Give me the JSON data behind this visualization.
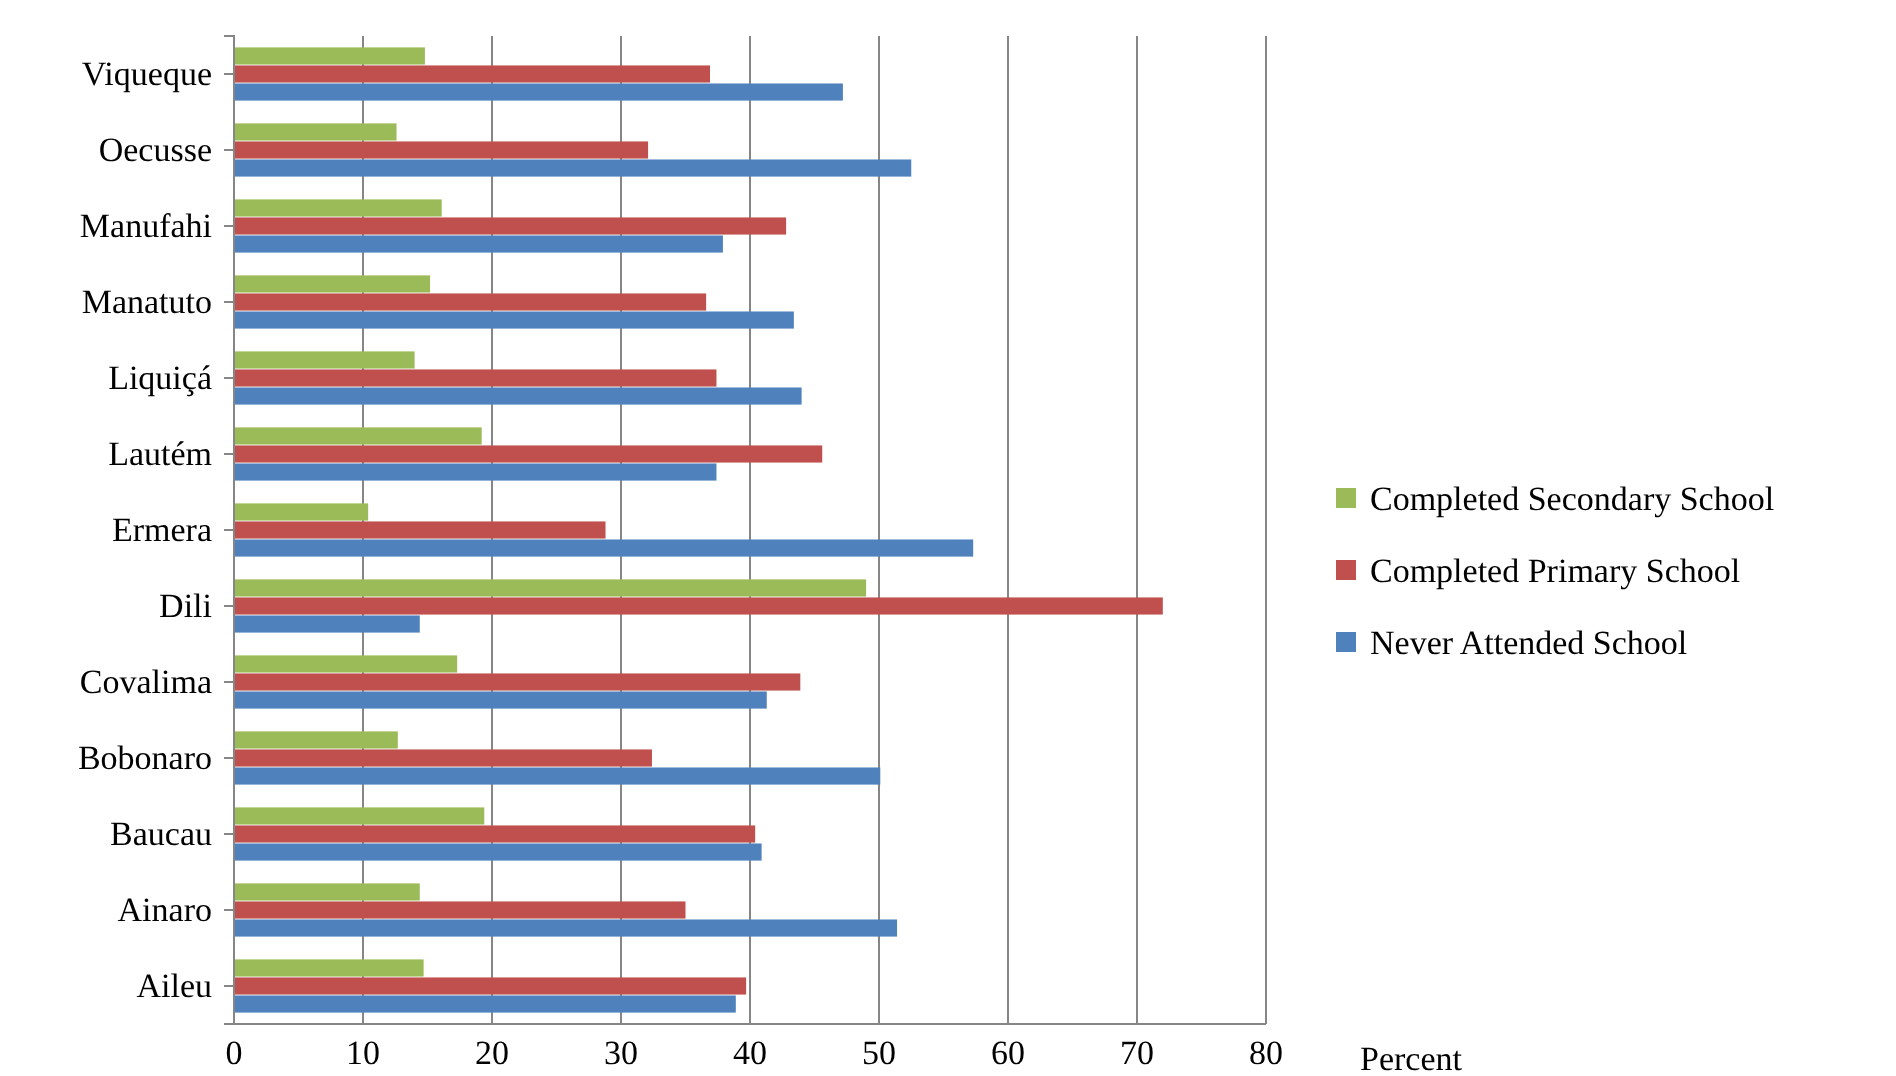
{
  "chart_data": {
    "type": "bar",
    "orientation": "horizontal",
    "xlabel": "Percent",
    "categories": [
      "Viqueque",
      "Oecusse",
      "Manufahi",
      "Manatuto",
      "Liquiçá",
      "Lautém",
      "Ermera",
      "Dili",
      "Covalima",
      "Bobonaro",
      "Baucau",
      "Ainaro",
      "Aileu"
    ],
    "series": [
      {
        "name": "Completed Secondary School",
        "color": "#9bbb59",
        "values": [
          14.8,
          12.6,
          16.1,
          15.2,
          14.0,
          19.2,
          10.4,
          49.0,
          17.3,
          12.7,
          19.4,
          14.4,
          14.7
        ]
      },
      {
        "name": "Completed Primary School",
        "color": "#c0504d",
        "values": [
          36.9,
          32.1,
          42.8,
          36.6,
          37.4,
          45.6,
          28.8,
          72.0,
          43.9,
          32.4,
          40.4,
          35.0,
          39.7
        ]
      },
      {
        "name": "Never Attended School",
        "color": "#4f81bd",
        "values": [
          47.2,
          52.5,
          37.9,
          43.4,
          44.0,
          37.4,
          57.3,
          14.4,
          41.3,
          50.1,
          40.9,
          51.4,
          38.9
        ]
      }
    ],
    "xlim": [
      0,
      80
    ],
    "xticks": [
      0,
      10,
      20,
      30,
      40,
      50,
      60,
      70,
      80
    ],
    "grid": "x",
    "legend": "right"
  }
}
